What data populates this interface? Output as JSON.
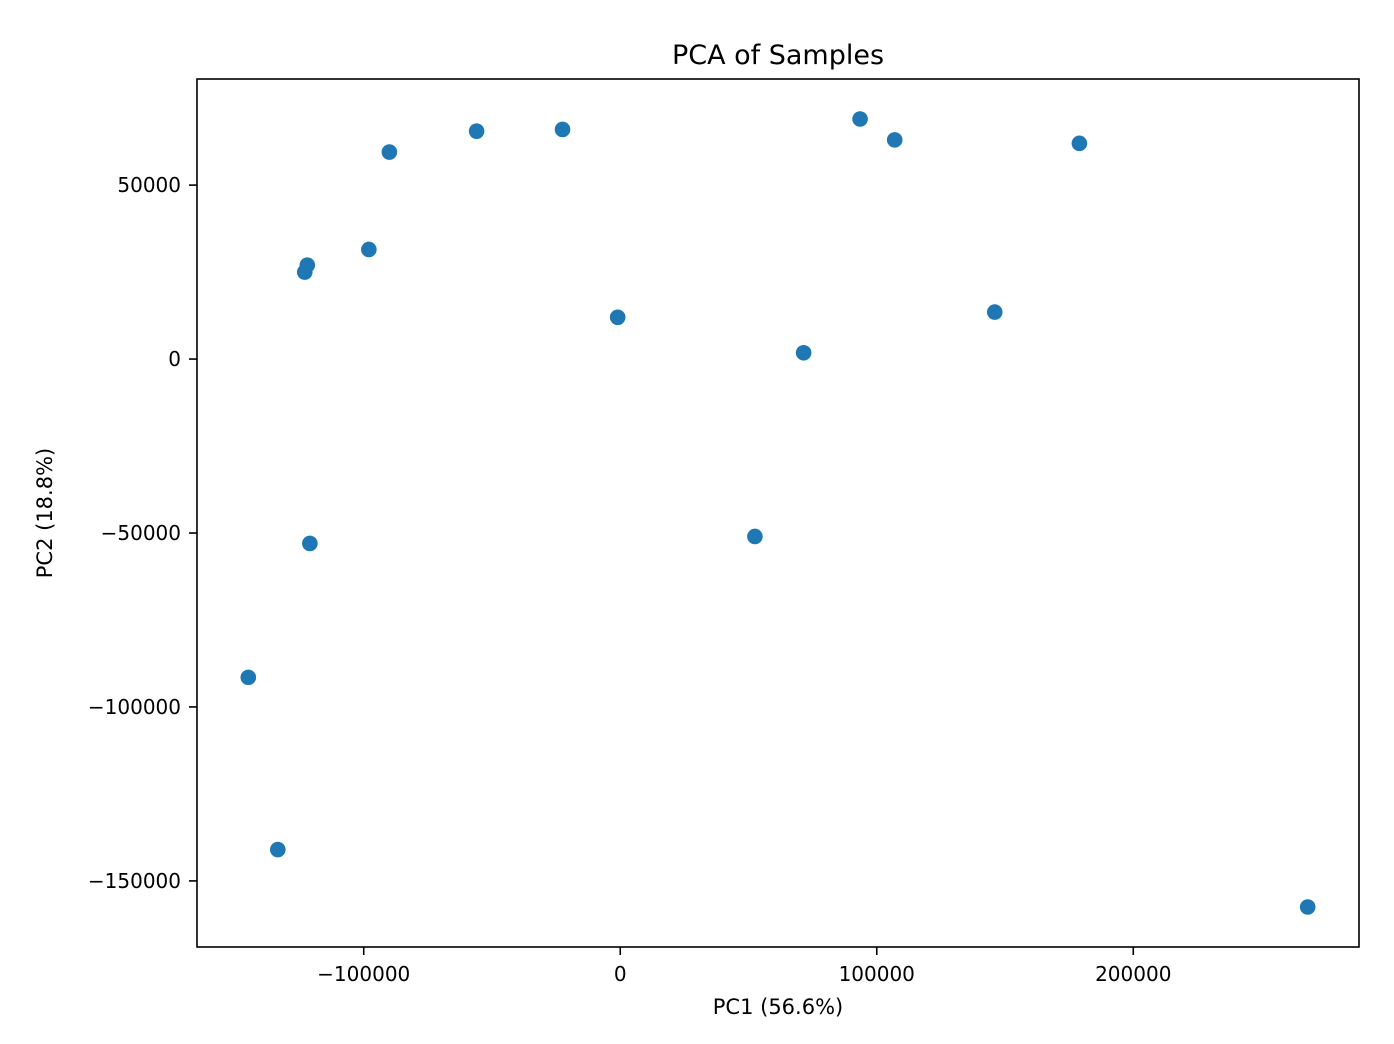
{
  "chart_data": {
    "type": "scatter",
    "title": "PCA of Samples",
    "xlabel": "PC1 (56.6%)",
    "ylabel": "PC2 (18.8%)",
    "xlim": [
      -165000,
      288000
    ],
    "ylim": [
      -169000,
      80500
    ],
    "xticks": [
      -100000,
      0,
      100000,
      200000
    ],
    "xtick_labels": [
      "−100000",
      "0",
      "100000",
      "200000"
    ],
    "yticks": [
      -150000,
      -100000,
      -50000,
      0,
      50000
    ],
    "ytick_labels": [
      "−150000",
      "−100000",
      "−50000",
      "0",
      "50000"
    ],
    "grid": false,
    "legend": "none",
    "marker_color": "#1f77b4",
    "series": [
      {
        "points": [
          {
            "x": -145000,
            "y": -91500
          },
          {
            "x": -133500,
            "y": -141000
          },
          {
            "x": -121000,
            "y": -53000
          },
          {
            "x": -123000,
            "y": 25000
          },
          {
            "x": -122000,
            "y": 27000
          },
          {
            "x": -98000,
            "y": 31500
          },
          {
            "x": -90000,
            "y": 59500
          },
          {
            "x": -56000,
            "y": 65500
          },
          {
            "x": -22500,
            "y": 66000
          },
          {
            "x": -1000,
            "y": 12000
          },
          {
            "x": 52500,
            "y": -51000
          },
          {
            "x": 71500,
            "y": 1800
          },
          {
            "x": 93500,
            "y": 69000
          },
          {
            "x": 107000,
            "y": 63000
          },
          {
            "x": 146000,
            "y": 13500
          },
          {
            "x": 179000,
            "y": 62000
          },
          {
            "x": 268000,
            "y": -157500
          }
        ]
      }
    ]
  }
}
